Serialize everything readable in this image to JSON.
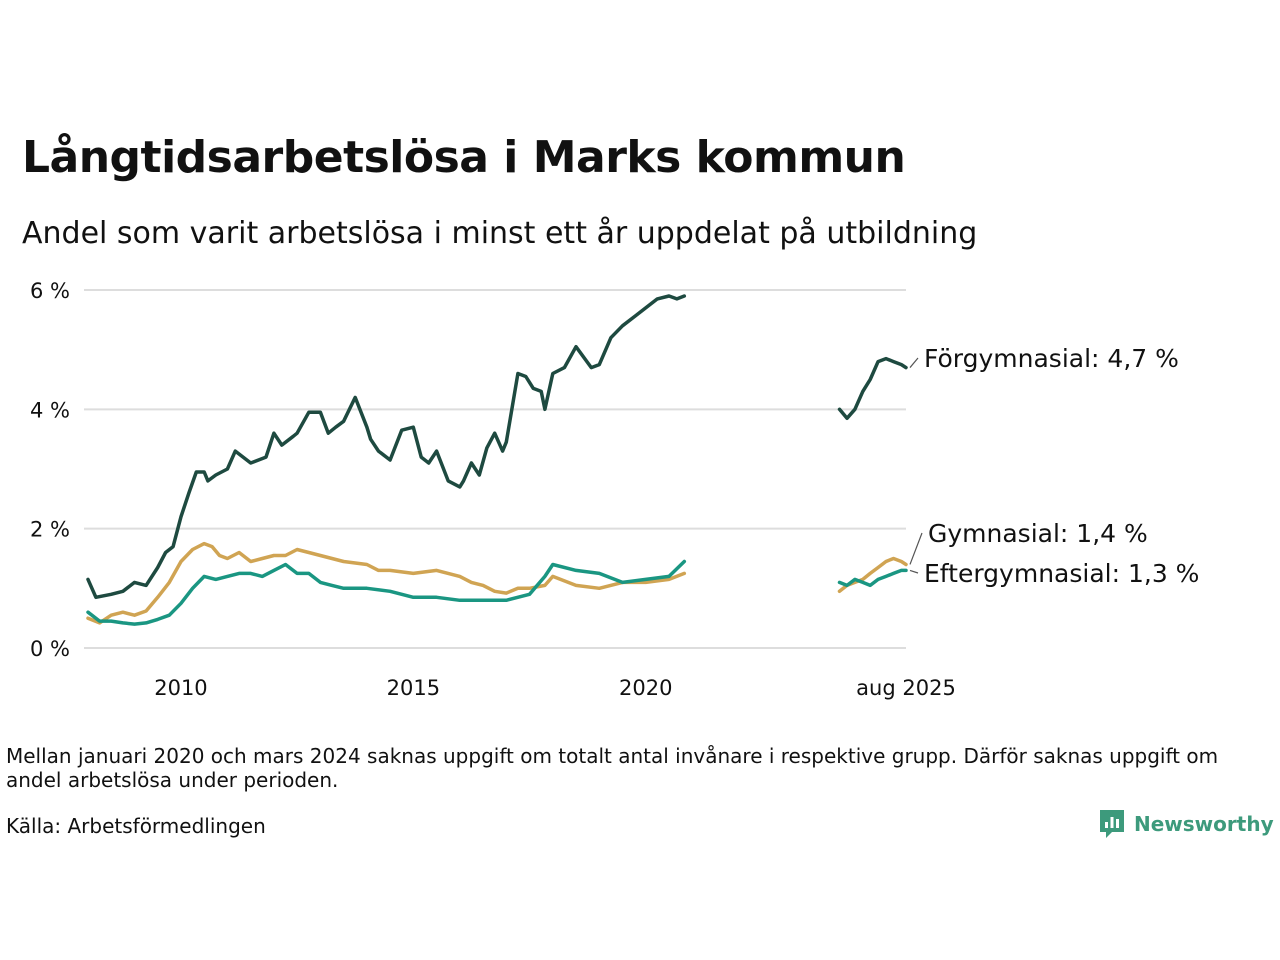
{
  "title": "Långtidsarbetslösa i Marks kommun",
  "subtitle": "Andel som varit arbetslösa i minst ett år uppdelat på utbildning",
  "note": "Mellan januari 2020 och mars 2024 saknas uppgift om totalt antal invånare i respektive grupp. Därför saknas uppgift om andel arbetslösa under perioden.",
  "source": "Källa: Arbetsförmedlingen",
  "brand": {
    "name": "Newsworthy",
    "icon": "newsworthy-logo-icon",
    "color": "#3d9a7c"
  },
  "chart_data": {
    "type": "line",
    "x_unit": "year (decimal, month resolution)",
    "xlim": [
      2008.0,
      2025.6
    ],
    "ylim": [
      0,
      6
    ],
    "y_ticks": [
      0,
      2,
      4,
      6
    ],
    "y_tick_labels": [
      "0 %",
      "2 %",
      "4 %",
      "6 %"
    ],
    "x_ticks": [
      2010,
      2015,
      2020,
      2025.6
    ],
    "x_tick_labels": [
      "2010",
      "2015",
      "2020",
      "aug 2025"
    ],
    "grid": "horizontal",
    "legend": "direct labels at line ends (right)",
    "series": [
      {
        "name": "Förgymnasial",
        "end_label": "Förgymnasial: 4,7 %",
        "color": "#1e4a40",
        "segments": [
          {
            "x": [
              2008.0,
              2008.17,
              2008.5,
              2008.75,
              2009.0,
              2009.25,
              2009.5,
              2009.67,
              2009.83,
              2010.0,
              2010.17,
              2010.33,
              2010.5,
              2010.58,
              2010.75,
              2011.0,
              2011.17,
              2011.5,
              2011.83,
              2012.0,
              2012.17,
              2012.42,
              2012.5,
              2012.75,
              2013.0,
              2013.17,
              2013.33,
              2013.5,
              2013.75,
              2014.0,
              2014.08,
              2014.25,
              2014.5,
              2014.75,
              2015.0,
              2015.17,
              2015.33,
              2015.5,
              2015.75,
              2016.0,
              2016.08,
              2016.25,
              2016.42,
              2016.58,
              2016.75,
              2016.92,
              2017.0,
              2017.25,
              2017.42,
              2017.58,
              2017.75,
              2017.83,
              2018.0,
              2018.25,
              2018.5,
              2018.83,
              2019.0,
              2019.25,
              2019.5,
              2019.75,
              2020.0,
              2020.25,
              2020.5,
              2020.67,
              2020.83
            ],
            "y": [
              1.15,
              0.85,
              0.9,
              0.95,
              1.1,
              1.05,
              1.35,
              1.6,
              1.7,
              2.2,
              2.6,
              2.95,
              2.95,
              2.8,
              2.9,
              3.0,
              3.3,
              3.1,
              3.2,
              3.6,
              3.4,
              3.55,
              3.6,
              3.95,
              3.95,
              3.6,
              3.7,
              3.8,
              4.2,
              3.7,
              3.5,
              3.3,
              3.15,
              3.65,
              3.7,
              3.2,
              3.1,
              3.3,
              2.8,
              2.7,
              2.8,
              3.1,
              2.9,
              3.35,
              3.6,
              3.3,
              3.45,
              4.6,
              4.55,
              4.35,
              4.3,
              4.0,
              4.6,
              4.7,
              5.05,
              4.7,
              4.75,
              5.2,
              5.4,
              5.55,
              5.7,
              5.85,
              5.9,
              5.85,
              5.9
            ]
          },
          {
            "x": [
              2024.17,
              2024.33,
              2024.5,
              2024.67,
              2024.83,
              2025.0,
              2025.17,
              2025.33,
              2025.5,
              2025.6
            ],
            "y": [
              4.0,
              3.85,
              4.0,
              4.3,
              4.5,
              4.8,
              4.85,
              4.8,
              4.75,
              4.7
            ]
          }
        ]
      },
      {
        "name": "Gymnasial",
        "end_label": "Gymnasial: 1,4 %",
        "color": "#d0a453",
        "segments": [
          {
            "x": [
              2008.0,
              2008.25,
              2008.5,
              2008.75,
              2009.0,
              2009.25,
              2009.5,
              2009.75,
              2010.0,
              2010.25,
              2010.5,
              2010.67,
              2010.83,
              2011.0,
              2011.25,
              2011.5,
              2011.75,
              2012.0,
              2012.25,
              2012.5,
              2012.75,
              2013.0,
              2013.25,
              2013.5,
              2014.0,
              2014.25,
              2014.5,
              2015.0,
              2015.5,
              2016.0,
              2016.25,
              2016.5,
              2016.75,
              2017.0,
              2017.25,
              2017.5,
              2017.83,
              2018.0,
              2018.5,
              2019.0,
              2019.5,
              2020.0,
              2020.5,
              2020.83
            ],
            "y": [
              0.5,
              0.42,
              0.55,
              0.6,
              0.55,
              0.62,
              0.85,
              1.1,
              1.45,
              1.65,
              1.75,
              1.7,
              1.55,
              1.5,
              1.6,
              1.45,
              1.5,
              1.55,
              1.55,
              1.65,
              1.6,
              1.55,
              1.5,
              1.45,
              1.4,
              1.3,
              1.3,
              1.25,
              1.3,
              1.2,
              1.1,
              1.05,
              0.95,
              0.92,
              1.0,
              1.0,
              1.05,
              1.2,
              1.05,
              1.0,
              1.1,
              1.1,
              1.15,
              1.25
            ]
          },
          {
            "x": [
              2024.17,
              2024.33,
              2024.5,
              2024.67,
              2024.83,
              2025.0,
              2025.17,
              2025.33,
              2025.5,
              2025.6
            ],
            "y": [
              0.95,
              1.05,
              1.1,
              1.15,
              1.25,
              1.35,
              1.45,
              1.5,
              1.45,
              1.4
            ]
          }
        ]
      },
      {
        "name": "Eftergymnasial",
        "end_label": "Eftergymnasial: 1,3 %",
        "color": "#1a9682",
        "segments": [
          {
            "x": [
              2008.0,
              2008.25,
              2008.5,
              2008.75,
              2009.0,
              2009.25,
              2009.5,
              2009.75,
              2010.0,
              2010.25,
              2010.5,
              2010.75,
              2011.0,
              2011.25,
              2011.5,
              2011.75,
              2012.0,
              2012.25,
              2012.5,
              2012.75,
              2013.0,
              2013.25,
              2013.5,
              2014.0,
              2014.5,
              2015.0,
              2015.5,
              2016.0,
              2016.5,
              2017.0,
              2017.5,
              2017.83,
              2018.0,
              2018.5,
              2019.0,
              2019.5,
              2020.0,
              2020.5,
              2020.83
            ],
            "y": [
              0.6,
              0.45,
              0.45,
              0.42,
              0.4,
              0.42,
              0.48,
              0.55,
              0.75,
              1.0,
              1.2,
              1.15,
              1.2,
              1.25,
              1.25,
              1.2,
              1.3,
              1.4,
              1.25,
              1.25,
              1.1,
              1.05,
              1.0,
              1.0,
              0.95,
              0.85,
              0.85,
              0.8,
              0.8,
              0.8,
              0.9,
              1.2,
              1.4,
              1.3,
              1.25,
              1.1,
              1.15,
              1.2,
              1.45
            ]
          },
          {
            "x": [
              2024.17,
              2024.33,
              2024.5,
              2024.67,
              2024.83,
              2025.0,
              2025.17,
              2025.33,
              2025.5,
              2025.6
            ],
            "y": [
              1.1,
              1.05,
              1.15,
              1.1,
              1.05,
              1.15,
              1.2,
              1.25,
              1.3,
              1.3
            ]
          }
        ]
      }
    ]
  }
}
